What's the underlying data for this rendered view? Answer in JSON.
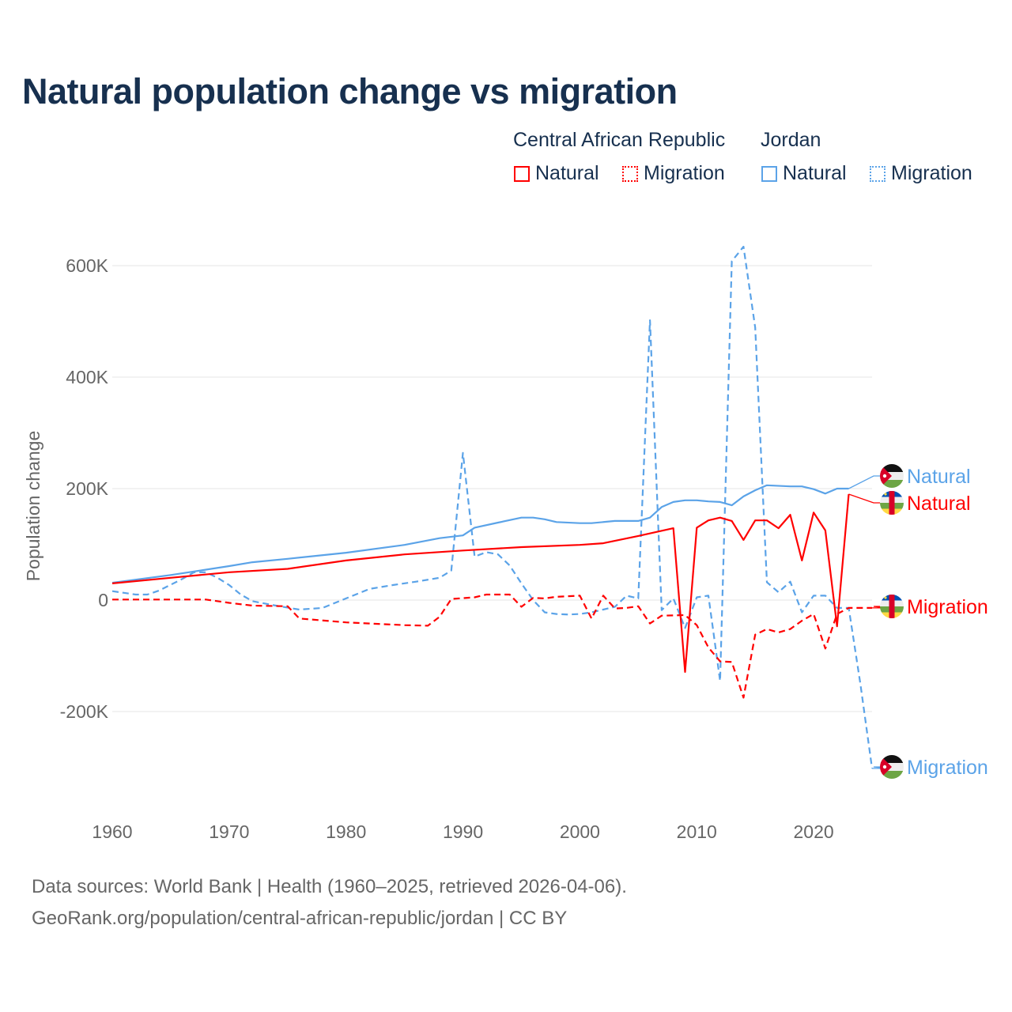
{
  "title": "Natural population change vs migration",
  "legend": {
    "groups": [
      {
        "name": "Central African Republic",
        "items": [
          "Natural",
          "Migration"
        ],
        "color": "#ff0000"
      },
      {
        "name": "Jordan",
        "items": [
          "Natural",
          "Migration"
        ],
        "color": "#5ba3e8"
      }
    ]
  },
  "footer": {
    "line1": "Data sources: World Bank | Health (1960–2025, retrieved 2026-04-06).",
    "line2": "GeoRank.org/population/central-african-republic/jordan | CC BY"
  },
  "chart_data": {
    "type": "line",
    "title": "Natural population change vs migration",
    "xlabel": "",
    "ylabel": "Population change",
    "xlim": [
      1960,
      2025
    ],
    "ylim": [
      -300000,
      650000
    ],
    "x_ticks": [
      1960,
      1970,
      1980,
      1990,
      2000,
      2010,
      2020
    ],
    "x_tick_labels": [
      "1960",
      "1970",
      "1980",
      "1990",
      "2000",
      "2010",
      "2020"
    ],
    "y_ticks": [
      -200000,
      0,
      200000,
      400000,
      600000
    ],
    "y_tick_labels": [
      "-200K",
      "0",
      "200K",
      "400K",
      "600K"
    ],
    "grid": "horizontal",
    "series": [
      {
        "name": "Natural",
        "country": "Central African Republic",
        "color": "#ff0000",
        "dash": false,
        "end_label": "Natural",
        "x": [
          1960,
          1965,
          1970,
          1975,
          1980,
          1985,
          1990,
          1995,
          2000,
          2002,
          2005,
          2008,
          2009,
          2010,
          2011,
          2012,
          2013,
          2014,
          2015,
          2016,
          2017,
          2018,
          2019,
          2020,
          2021,
          2022,
          2023
        ],
        "values": [
          30000,
          40000,
          50000,
          56000,
          71000,
          82000,
          89000,
          95000,
          99000,
          102000,
          115000,
          129000,
          -129000,
          130000,
          143000,
          148000,
          142000,
          108000,
          143000,
          143000,
          129000,
          153000,
          71000,
          157000,
          125000,
          -47000,
          190000
        ]
      },
      {
        "name": "Migration",
        "country": "Central African Republic",
        "color": "#ff0000",
        "dash": true,
        "end_label": "Migration",
        "x": [
          1960,
          1968,
          1970,
          1972,
          1975,
          1976,
          1980,
          1985,
          1987,
          1988,
          1989,
          1991,
          1992,
          1994,
          1995,
          1996,
          1997,
          1998,
          2000,
          2001,
          2002,
          2003,
          2004,
          2005,
          2006,
          2007,
          2009,
          2010,
          2011,
          2012,
          2013,
          2014,
          2015,
          2016,
          2017,
          2018,
          2019,
          2020,
          2021,
          2022,
          2023,
          2025
        ],
        "values": [
          1000,
          1000,
          -5000,
          -10000,
          -11000,
          -33000,
          -40000,
          -45000,
          -46000,
          -30000,
          2000,
          5000,
          10000,
          10000,
          -12000,
          4000,
          3000,
          6000,
          8000,
          -33000,
          8000,
          -15000,
          -14000,
          -11000,
          -42000,
          -28000,
          -27000,
          -45000,
          -85000,
          -110000,
          -111000,
          -175000,
          -62000,
          -52000,
          -58000,
          -52000,
          -37000,
          -25000,
          -87000,
          -25000,
          -14000,
          -14000
        ]
      },
      {
        "name": "Natural",
        "country": "Jordan",
        "color": "#5ba3e8",
        "dash": false,
        "end_label": "Natural",
        "x": [
          1960,
          1965,
          1970,
          1972,
          1975,
          1980,
          1985,
          1988,
          1990,
          1991,
          1993,
          1995,
          1996,
          1997,
          1998,
          2000,
          2001,
          2003,
          2005,
          2006,
          2007,
          2008,
          2009,
          2010,
          2011,
          2012,
          2013,
          2014,
          2015,
          2016,
          2018,
          2019,
          2020,
          2021,
          2022,
          2023
        ],
        "values": [
          31000,
          45000,
          61000,
          68000,
          74000,
          85000,
          99000,
          111000,
          116000,
          130000,
          139000,
          148000,
          148000,
          145000,
          140000,
          138000,
          138000,
          142000,
          142000,
          148000,
          167000,
          176000,
          179000,
          179000,
          177000,
          176000,
          170000,
          186000,
          197000,
          206000,
          204000,
          204000,
          199000,
          191000,
          200000,
          200000
        ]
      },
      {
        "name": "Migration",
        "country": "Jordan",
        "color": "#5ba3e8",
        "dash": true,
        "end_label": "Migration",
        "x": [
          1960,
          1962,
          1963,
          1964,
          1966,
          1967,
          1968,
          1969,
          1970,
          1971,
          1972,
          1974,
          1976,
          1978,
          1980,
          1982,
          1984,
          1986,
          1988,
          1989,
          1990,
          1991,
          1992,
          1993,
          1994,
          1995,
          1996,
          1997,
          1998,
          1999,
          2000,
          2001,
          2002,
          2003,
          2004,
          2005,
          2006,
          2007,
          2008,
          2009,
          2010,
          2011,
          2012,
          2013,
          2014,
          2015,
          2016,
          2017,
          2018,
          2019,
          2020,
          2021,
          2022,
          2023,
          2024,
          2025
        ],
        "values": [
          16000,
          10000,
          10000,
          17000,
          38000,
          50000,
          50000,
          40000,
          27000,
          10000,
          -2000,
          -10000,
          -17000,
          -14000,
          3000,
          20000,
          27000,
          33000,
          40000,
          53000,
          264000,
          78000,
          86000,
          82000,
          62000,
          30000,
          0,
          -22000,
          -25000,
          -26000,
          -25000,
          -22000,
          -17000,
          -12000,
          8000,
          3000,
          502000,
          -18000,
          3000,
          -50000,
          5000,
          8000,
          -145000,
          608000,
          634000,
          489000,
          32000,
          14000,
          33000,
          -22000,
          8000,
          8000,
          -14000,
          -14000,
          -150000,
          -302000
        ]
      }
    ]
  }
}
